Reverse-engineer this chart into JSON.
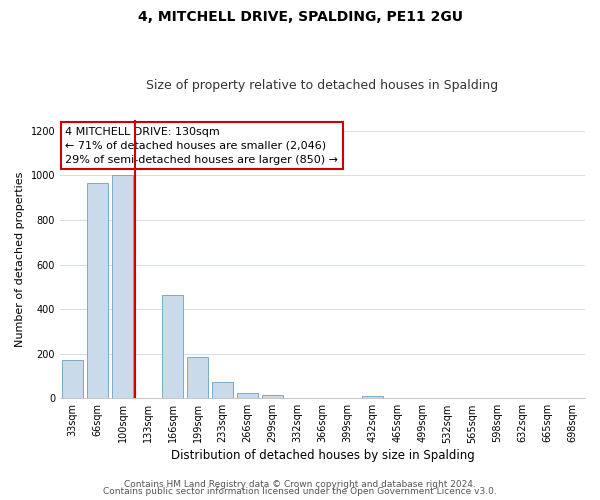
{
  "title": "4, MITCHELL DRIVE, SPALDING, PE11 2GU",
  "subtitle": "Size of property relative to detached houses in Spalding",
  "xlabel": "Distribution of detached houses by size in Spalding",
  "ylabel": "Number of detached properties",
  "bar_labels": [
    "33sqm",
    "66sqm",
    "100sqm",
    "133sqm",
    "166sqm",
    "199sqm",
    "233sqm",
    "266sqm",
    "299sqm",
    "332sqm",
    "366sqm",
    "399sqm",
    "432sqm",
    "465sqm",
    "499sqm",
    "532sqm",
    "565sqm",
    "598sqm",
    "632sqm",
    "665sqm",
    "698sqm"
  ],
  "bar_values": [
    170,
    965,
    1000,
    0,
    465,
    185,
    75,
    25,
    15,
    0,
    0,
    0,
    10,
    0,
    0,
    0,
    0,
    0,
    0,
    0,
    0
  ],
  "bar_color": "#c9daea",
  "bar_edge_color": "#7aaac8",
  "vline_color": "#cc0000",
  "ylim": [
    0,
    1250
  ],
  "yticks": [
    0,
    200,
    400,
    600,
    800,
    1000,
    1200
  ],
  "annotation_title": "4 MITCHELL DRIVE: 130sqm",
  "annotation_line1": "← 71% of detached houses are smaller (2,046)",
  "annotation_line2": "29% of semi-detached houses are larger (850) →",
  "annotation_box_color": "#ffffff",
  "annotation_box_edge": "#cc0000",
  "footer_line1": "Contains HM Land Registry data © Crown copyright and database right 2024.",
  "footer_line2": "Contains public sector information licensed under the Open Government Licence v3.0.",
  "title_fontsize": 10,
  "subtitle_fontsize": 9,
  "xlabel_fontsize": 8.5,
  "ylabel_fontsize": 8,
  "tick_fontsize": 7,
  "footer_fontsize": 6.5,
  "annotation_fontsize": 8
}
